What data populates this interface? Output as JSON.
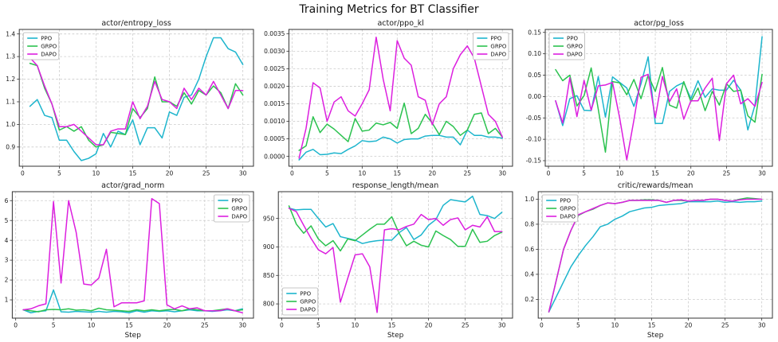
{
  "figure": {
    "title": "Training Metrics for BT Classifier"
  },
  "colors": {
    "PPO": "#1db5cd",
    "GRPO": "#2bc24f",
    "DAPO": "#dc1fdf"
  },
  "chart_data": [
    {
      "type": "line",
      "title": "actor/entropy_loss",
      "xlabel": "",
      "x_start": 1,
      "xlim": [
        -0.45,
        31.45
      ],
      "xticks": [
        0,
        5,
        10,
        15,
        20,
        25,
        30
      ],
      "ylim": [
        0.815,
        1.42
      ],
      "yticks": [
        0.9,
        1.0,
        1.1,
        1.2,
        1.3,
        1.4
      ],
      "ytick_labels": [
        "0.9",
        "1.0",
        "1.1",
        "1.2",
        "1.3",
        "1.4"
      ],
      "grid": true,
      "legend": "upper-left",
      "series": [
        {
          "name": "PPO",
          "color": "#1db5cd",
          "values": [
            1.08,
            1.11,
            1.04,
            1.03,
            0.93,
            0.93,
            0.88,
            0.84,
            0.85,
            0.87,
            0.96,
            0.9,
            0.97,
            0.955,
            1.02,
            0.91,
            0.985,
            0.985,
            0.94,
            1.055,
            1.04,
            1.12,
            1.13,
            1.2,
            1.3,
            1.383,
            1.383,
            1.335,
            1.32,
            1.265
          ]
        },
        {
          "name": "GRPO",
          "color": "#2bc24f",
          "values": [
            1.27,
            1.26,
            1.16,
            1.09,
            0.975,
            0.99,
            0.97,
            0.99,
            0.93,
            0.9,
            0.91,
            0.965,
            0.96,
            0.955,
            1.07,
            1.03,
            1.07,
            1.21,
            1.1,
            1.1,
            1.08,
            1.14,
            1.09,
            1.15,
            1.13,
            1.17,
            1.14,
            1.07,
            1.18,
            1.13
          ]
        },
        {
          "name": "DAPO",
          "color": "#dc1fdf",
          "values": [
            1.295,
            1.26,
            1.17,
            1.09,
            0.99,
            0.99,
            1.0,
            0.97,
            0.94,
            0.91,
            0.91,
            0.97,
            0.98,
            0.98,
            1.1,
            1.025,
            1.08,
            1.19,
            1.11,
            1.1,
            1.07,
            1.16,
            1.11,
            1.16,
            1.13,
            1.19,
            1.13,
            1.07,
            1.15,
            1.15
          ]
        }
      ]
    },
    {
      "type": "line",
      "title": "actor/ppo_kl",
      "xlabel": "",
      "x_start": 1,
      "xlim": [
        -0.45,
        31.45
      ],
      "xticks": [
        0,
        5,
        10,
        15,
        20,
        25,
        30
      ],
      "ylim": [
        -0.00028,
        0.00362
      ],
      "yticks": [
        0.0,
        0.0005,
        0.001,
        0.0015,
        0.002,
        0.0025,
        0.003,
        0.0035
      ],
      "ytick_labels": [
        "0.0000",
        "0.0005",
        "0.0010",
        "0.0015",
        "0.0020",
        "0.0025",
        "0.0030",
        "0.0035"
      ],
      "grid": true,
      "legend": "upper-right",
      "series": [
        {
          "name": "PPO",
          "color": "#1db5cd",
          "values": [
            -0.0001,
            0.00012,
            0.0002,
            5e-05,
            6e-05,
            0.0001,
            8e-05,
            0.0002,
            0.0003,
            0.00045,
            0.00042,
            0.00044,
            0.00055,
            0.0005,
            0.00038,
            0.00048,
            0.0005,
            0.0005,
            0.00058,
            0.0006,
            0.0006,
            0.00055,
            0.00055,
            0.00033,
            0.00075,
            0.0006,
            0.0006,
            0.00055,
            0.00055,
            0.00052
          ]
        },
        {
          "name": "GRPO",
          "color": "#2bc24f",
          "values": [
            0.00017,
            0.0003,
            0.00113,
            0.00068,
            0.00092,
            0.00078,
            0.0006,
            0.00042,
            0.00108,
            0.00072,
            0.00075,
            0.00095,
            0.0009,
            0.00097,
            0.0008,
            0.00152,
            0.00065,
            0.0008,
            0.0012,
            0.00095,
            0.00062,
            0.001,
            0.00085,
            0.0006,
            0.00075,
            0.0012,
            0.00124,
            0.00065,
            0.0008,
            0.00055
          ]
        },
        {
          "name": "DAPO",
          "color": "#dc1fdf",
          "values": [
            -5e-05,
            0.0008,
            0.0021,
            0.00195,
            0.001,
            0.00155,
            0.0017,
            0.0013,
            0.00115,
            0.0015,
            0.0019,
            0.0034,
            0.0022,
            0.0013,
            0.0033,
            0.0028,
            0.0026,
            0.0017,
            0.0016,
            0.0009,
            0.0015,
            0.0017,
            0.0025,
            0.0029,
            0.00315,
            0.0028,
            0.002,
            0.0012,
            0.001,
            0.00055
          ]
        }
      ]
    },
    {
      "type": "line",
      "title": "actor/pg_loss",
      "xlabel": "",
      "x_start": 1,
      "xlim": [
        -0.45,
        31.45
      ],
      "xticks": [
        0,
        5,
        10,
        15,
        20,
        25,
        30
      ],
      "ylim": [
        -0.163,
        0.157
      ],
      "yticks": [
        -0.15,
        -0.1,
        -0.05,
        0.0,
        0.05,
        0.1,
        0.15
      ],
      "ytick_labels": [
        "-0.15",
        "-0.10",
        "-0.05",
        "0.00",
        "0.05",
        "0.10",
        "0.15"
      ],
      "grid": true,
      "legend": "upper-left",
      "series": [
        {
          "name": "PPO",
          "color": "#1db5cd",
          "values": [
            -0.01,
            -0.068,
            -0.005,
            0.002,
            -0.032,
            -0.033,
            0.047,
            -0.048,
            0.046,
            0.033,
            0.02,
            -0.023,
            0.03,
            0.093,
            -0.063,
            -0.063,
            0.012,
            0.025,
            0.033,
            -0.005,
            0.037,
            -0.002,
            0.018,
            0.015,
            0.015,
            0.038,
            0.015,
            -0.078,
            -0.02,
            0.14
          ]
        },
        {
          "name": "GRPO",
          "color": "#2bc24f",
          "values": [
            0.063,
            0.037,
            0.05,
            -0.022,
            0.002,
            0.067,
            -0.03,
            -0.13,
            0.035,
            0.032,
            0.004,
            0.04,
            -0.005,
            0.05,
            0.012,
            0.068,
            -0.02,
            -0.027,
            0.035,
            -0.012,
            0.02,
            -0.033,
            0.012,
            -0.02,
            0.03,
            0.012,
            0.015,
            -0.045,
            -0.06,
            0.052
          ]
        },
        {
          "name": "DAPO",
          "color": "#dc1fdf",
          "values": [
            -0.01,
            -0.062,
            0.044,
            -0.047,
            0.038,
            -0.032,
            0.025,
            0.027,
            0.033,
            -0.05,
            -0.148,
            -0.055,
            0.045,
            0.052,
            -0.05,
            0.047,
            -0.012,
            0.018,
            -0.053,
            -0.01,
            -0.01,
            0.02,
            0.043,
            -0.103,
            0.03,
            0.05,
            -0.017,
            -0.005,
            -0.023,
            0.033
          ]
        }
      ]
    },
    {
      "type": "line",
      "title": "actor/grad_norm",
      "xlabel": "Step",
      "x_start": 1,
      "xlim": [
        -0.45,
        31.45
      ],
      "xticks": [
        0,
        5,
        10,
        15,
        20,
        25,
        30
      ],
      "ylim": [
        0.08,
        6.45
      ],
      "yticks": [
        1,
        2,
        3,
        4,
        5,
        6
      ],
      "ytick_labels": [
        "1",
        "2",
        "3",
        "4",
        "5",
        "6"
      ],
      "grid": true,
      "legend": "upper-right",
      "series": [
        {
          "name": "PPO",
          "color": "#1db5cd",
          "values": [
            0.5,
            0.35,
            0.42,
            0.45,
            1.5,
            0.4,
            0.38,
            0.42,
            0.4,
            0.38,
            0.42,
            0.38,
            0.42,
            0.4,
            0.35,
            0.45,
            0.38,
            0.45,
            0.42,
            0.45,
            0.4,
            0.45,
            0.5,
            0.45,
            0.45,
            0.42,
            0.45,
            0.5,
            0.45,
            0.55
          ]
        },
        {
          "name": "GRPO",
          "color": "#2bc24f",
          "values": [
            0.5,
            0.45,
            0.4,
            0.5,
            0.52,
            0.5,
            0.55,
            0.48,
            0.5,
            0.45,
            0.58,
            0.5,
            0.48,
            0.45,
            0.42,
            0.5,
            0.45,
            0.5,
            0.45,
            0.5,
            0.52,
            0.45,
            0.55,
            0.5,
            0.45,
            0.45,
            0.5,
            0.55,
            0.45,
            0.5
          ]
        },
        {
          "name": "DAPO",
          "color": "#dc1fdf",
          "values": [
            0.5,
            0.55,
            0.7,
            0.8,
            5.95,
            1.85,
            6.0,
            4.4,
            1.8,
            1.75,
            2.1,
            3.55,
            0.65,
            0.85,
            0.85,
            0.85,
            0.95,
            6.1,
            5.85,
            0.75,
            0.55,
            0.7,
            0.55,
            0.6,
            0.45,
            0.45,
            0.45,
            0.55,
            0.45,
            0.35
          ]
        }
      ]
    },
    {
      "type": "line",
      "title": "response_length/mean",
      "xlabel": "Step",
      "x_start": 1,
      "xlim": [
        -0.45,
        31.45
      ],
      "xticks": [
        0,
        5,
        10,
        15,
        20,
        25,
        30
      ],
      "ylim": [
        775,
        997
      ],
      "yticks": [
        800,
        850,
        900,
        950
      ],
      "ytick_labels": [
        "800",
        "850",
        "900",
        "950"
      ],
      "grid": true,
      "legend": "lower-left",
      "series": [
        {
          "name": "PPO",
          "color": "#1db5cd",
          "values": [
            968,
            965,
            966,
            966,
            950,
            935,
            941,
            918,
            915,
            912,
            906,
            909,
            911,
            912,
            912,
            925,
            934,
            913,
            921,
            938,
            948,
            973,
            983,
            981,
            979,
            989,
            957,
            955,
            950,
            961
          ]
        },
        {
          "name": "GRPO",
          "color": "#2bc24f",
          "values": [
            972,
            940,
            924,
            937,
            914,
            902,
            911,
            893,
            914,
            911,
            921,
            931,
            940,
            940,
            953,
            924,
            902,
            910,
            903,
            900,
            928,
            920,
            913,
            901,
            901,
            931,
            908,
            910,
            920,
            926
          ]
        },
        {
          "name": "DAPO",
          "color": "#dc1fdf",
          "values": [
            968,
            962,
            938,
            915,
            895,
            888,
            899,
            803,
            845,
            886,
            888,
            865,
            785,
            930,
            932,
            930,
            936,
            940,
            957,
            948,
            950,
            938,
            948,
            951,
            930,
            938,
            935,
            953,
            927,
            927
          ]
        }
      ]
    },
    {
      "type": "line",
      "title": "critic/rewards/mean",
      "xlabel": "Step",
      "x_start": 1,
      "xlim": [
        -0.45,
        31.45
      ],
      "xticks": [
        0,
        5,
        10,
        15,
        20,
        25,
        30
      ],
      "ylim": [
        0.05,
        1.06
      ],
      "yticks": [
        0.2,
        0.4,
        0.6,
        0.8,
        1.0
      ],
      "ytick_labels": [
        "0.2",
        "0.4",
        "0.6",
        "0.8",
        "1.0"
      ],
      "grid": true,
      "legend": "upper-left",
      "series": [
        {
          "name": "PPO",
          "color": "#1db5cd",
          "values": [
            0.1,
            0.22,
            0.34,
            0.46,
            0.55,
            0.63,
            0.7,
            0.78,
            0.8,
            0.84,
            0.865,
            0.9,
            0.915,
            0.93,
            0.935,
            0.95,
            0.955,
            0.96,
            0.965,
            0.98,
            0.98,
            0.98,
            0.98,
            0.985,
            0.975,
            0.98,
            0.975,
            0.98,
            0.98,
            0.985
          ]
        },
        {
          "name": "GRPO",
          "color": "#2bc24f",
          "values": [
            0.1,
            0.35,
            0.6,
            0.75,
            0.87,
            0.9,
            0.92,
            0.95,
            0.97,
            0.965,
            0.975,
            0.99,
            0.99,
            0.995,
            0.995,
            0.99,
            0.975,
            0.99,
            0.99,
            0.985,
            0.99,
            0.99,
            1.0,
            1.0,
            0.99,
            0.985,
            1.0,
            1.01,
            1.005,
            1.0
          ]
        },
        {
          "name": "DAPO",
          "color": "#dc1fdf",
          "values": [
            0.1,
            0.35,
            0.6,
            0.75,
            0.875,
            0.9,
            0.925,
            0.95,
            0.97,
            0.965,
            0.975,
            0.99,
            0.99,
            0.99,
            0.99,
            0.99,
            0.975,
            0.99,
            0.995,
            0.985,
            0.99,
            0.99,
            1.0,
            1.0,
            0.99,
            0.985,
            0.995,
            1.0,
            1.0,
            1.0
          ]
        }
      ]
    }
  ]
}
